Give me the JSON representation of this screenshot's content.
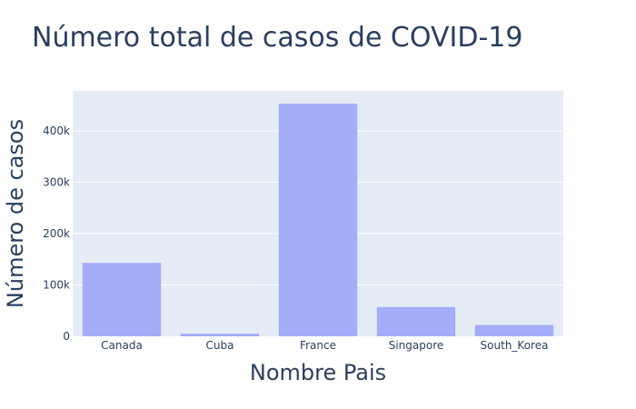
{
  "chart_data": {
    "type": "bar",
    "title": "Número total de casos de COVID-19",
    "xlabel": "Nombre Pais",
    "ylabel": "Número de casos",
    "categories": [
      "Canada",
      "Cuba",
      "France",
      "Singapore",
      "South_Korea"
    ],
    "values": [
      143000,
      5000,
      453000,
      57000,
      22000
    ],
    "ylim": [
      0,
      478000
    ],
    "yticks": [
      0,
      100000,
      200000,
      300000,
      400000
    ],
    "ytick_labels": [
      "0",
      "100k",
      "200k",
      "300k",
      "400k"
    ],
    "grid": true,
    "legend": "none"
  },
  "colors": {
    "bar": "#a3adf8",
    "plot_bg": "#e5ecf6",
    "text": "#2a3f5f",
    "grid": "#ffffff"
  }
}
